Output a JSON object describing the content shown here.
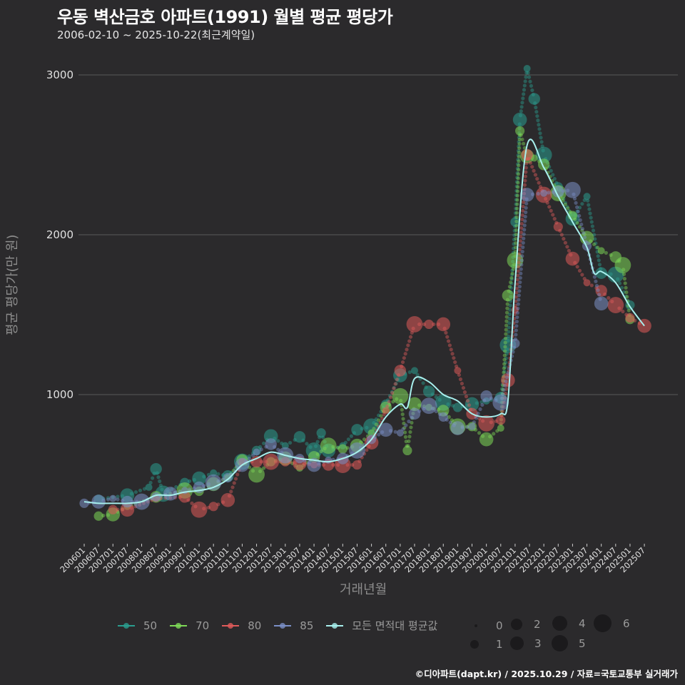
{
  "header": {
    "title": "우동 벽산금호 아파트(1991) 월별 평균 평당가",
    "subtitle": "2006-02-10 ~ 2025-10-22(최근계약일)"
  },
  "axes": {
    "ylabel": "평균 평당가(만 원)",
    "xlabel": "거래년월"
  },
  "legend": {
    "series": [
      {
        "label": "50",
        "color": "#2a9d8f"
      },
      {
        "label": "70",
        "color": "#7ed957"
      },
      {
        "label": "80",
        "color": "#e05a5a"
      },
      {
        "label": "85",
        "color": "#7b8fc7"
      },
      {
        "label": "모든 면적대 평균값",
        "color": "#a8f0ee"
      }
    ],
    "sizes": [
      {
        "label": "0",
        "d": 4
      },
      {
        "label": "1",
        "d": 12
      },
      {
        "label": "2",
        "d": 16
      },
      {
        "label": "3",
        "d": 19
      },
      {
        "label": "4",
        "d": 21
      },
      {
        "label": "5",
        "d": 23
      },
      {
        "label": "6",
        "d": 25
      }
    ]
  },
  "footer": "©디아파트(dapt.kr) / 2025.10.29 / 자료=국토교통부 실거래가",
  "chart_data": {
    "type": "scatter",
    "title": "우동 벽산금호 아파트(1991) 월별 평균 평당가",
    "subtitle": "2006-02-10 ~ 2025-10-22(최근계약일)",
    "xlabel": "거래년월",
    "ylabel": "평균 평당가(만 원)",
    "ylim": [
      0,
      3150
    ],
    "yticks": [
      1000,
      2000,
      3000
    ],
    "grid": true,
    "legend_position": "bottom",
    "categories": [
      "200601",
      "200607",
      "200701",
      "200707",
      "200801",
      "200807",
      "200901",
      "200907",
      "201001",
      "201007",
      "201101",
      "201107",
      "201201",
      "201207",
      "201301",
      "201307",
      "201401",
      "201407",
      "201501",
      "201507",
      "201601",
      "201607",
      "201701",
      "201707",
      "201801",
      "201807",
      "201901",
      "201907",
      "202001",
      "202007",
      "202101",
      "202107",
      "202201",
      "202207",
      "202301",
      "202307",
      "202401",
      "202407",
      "202501",
      "202507"
    ],
    "series": [
      {
        "name": "50",
        "color": "#2a9d8f",
        "points": [
          [
            "2006-07",
            345
          ],
          [
            "2007-07",
            370
          ],
          [
            "2008-04",
            420
          ],
          [
            "2008-07",
            535
          ],
          [
            "2008-10",
            380
          ],
          [
            "2009-07",
            450
          ],
          [
            "2010-01",
            475
          ],
          [
            "2010-07",
            510
          ],
          [
            "2011-01",
            490
          ],
          [
            "2011-07",
            580
          ],
          [
            "2012-01",
            650
          ],
          [
            "2012-07",
            740
          ],
          [
            "2013-01",
            680
          ],
          [
            "2013-07",
            735
          ],
          [
            "2014-01",
            650
          ],
          [
            "2014-04",
            760
          ],
          [
            "2014-07",
            650
          ],
          [
            "2015-01",
            680
          ],
          [
            "2015-07",
            780
          ],
          [
            "2016-01",
            800
          ],
          [
            "2016-07",
            940
          ],
          [
            "2017-01",
            1120
          ],
          [
            "2017-07",
            1150
          ],
          [
            "2018-01",
            1020
          ],
          [
            "2018-07",
            950
          ],
          [
            "2019-01",
            920
          ],
          [
            "2019-07",
            940
          ],
          [
            "2020-01",
            960
          ],
          [
            "2020-07",
            980
          ],
          [
            "2020-10",
            1310
          ],
          [
            "2021-01",
            2080
          ],
          [
            "2021-03",
            2720
          ],
          [
            "2021-06",
            3040
          ],
          [
            "2021-09",
            2850
          ],
          [
            "2022-01",
            2500
          ],
          [
            "2022-07",
            2300
          ],
          [
            "2023-01",
            2100
          ],
          [
            "2023-07",
            2240
          ],
          [
            "2024-01",
            1760
          ],
          [
            "2024-07",
            1750
          ],
          [
            "2025-01",
            1560
          ]
        ]
      },
      {
        "name": "70",
        "color": "#7ed957",
        "points": [
          [
            "2006-07",
            240
          ],
          [
            "2007-01",
            250
          ],
          [
            "2007-07",
            300
          ],
          [
            "2008-07",
            360
          ],
          [
            "2009-07",
            400
          ],
          [
            "2010-01",
            395
          ],
          [
            "2010-07",
            440
          ],
          [
            "2011-01",
            480
          ],
          [
            "2011-07",
            590
          ],
          [
            "2012-01",
            500
          ],
          [
            "2012-07",
            580
          ],
          [
            "2013-01",
            600
          ],
          [
            "2013-07",
            540
          ],
          [
            "2014-01",
            610
          ],
          [
            "2014-07",
            680
          ],
          [
            "2015-01",
            660
          ],
          [
            "2015-07",
            680
          ],
          [
            "2016-01",
            760
          ],
          [
            "2016-07",
            920
          ],
          [
            "2017-01",
            990
          ],
          [
            "2017-04",
            650
          ],
          [
            "2017-07",
            940
          ],
          [
            "2018-01",
            920
          ],
          [
            "2018-07",
            900
          ],
          [
            "2019-01",
            800
          ],
          [
            "2019-07",
            800
          ],
          [
            "2020-01",
            720
          ],
          [
            "2020-07",
            790
          ],
          [
            "2020-10",
            1620
          ],
          [
            "2021-01",
            1840
          ],
          [
            "2021-03",
            2650
          ],
          [
            "2021-06",
            2490
          ],
          [
            "2021-09",
            2480
          ],
          [
            "2022-01",
            2440
          ],
          [
            "2022-07",
            2260
          ],
          [
            "2023-01",
            2120
          ],
          [
            "2023-07",
            1980
          ],
          [
            "2024-01",
            1900
          ],
          [
            "2024-07",
            1860
          ],
          [
            "2024-10",
            1810
          ],
          [
            "2025-01",
            1470
          ]
        ]
      },
      {
        "name": "80",
        "color": "#e05a5a",
        "points": [
          [
            "2007-01",
            280
          ],
          [
            "2007-07",
            280
          ],
          [
            "2008-07",
            350
          ],
          [
            "2009-07",
            360
          ],
          [
            "2010-01",
            280
          ],
          [
            "2010-07",
            300
          ],
          [
            "2011-01",
            340
          ],
          [
            "2011-07",
            580
          ],
          [
            "2012-01",
            580
          ],
          [
            "2012-07",
            580
          ],
          [
            "2013-01",
            580
          ],
          [
            "2013-07",
            570
          ],
          [
            "2014-01",
            560
          ],
          [
            "2014-07",
            560
          ],
          [
            "2015-01",
            560
          ],
          [
            "2015-07",
            560
          ],
          [
            "2016-01",
            700
          ],
          [
            "2016-07",
            900
          ],
          [
            "2017-01",
            1150
          ],
          [
            "2017-07",
            1440
          ],
          [
            "2018-01",
            1440
          ],
          [
            "2018-07",
            1440
          ],
          [
            "2019-01",
            1150
          ],
          [
            "2019-07",
            880
          ],
          [
            "2020-01",
            820
          ],
          [
            "2020-07",
            840
          ],
          [
            "2020-10",
            1090
          ],
          [
            "2021-01",
            1530
          ],
          [
            "2021-06",
            2500
          ],
          [
            "2022-01",
            2250
          ],
          [
            "2022-07",
            2050
          ],
          [
            "2023-01",
            1850
          ],
          [
            "2023-07",
            1700
          ],
          [
            "2024-01",
            1650
          ],
          [
            "2024-07",
            1560
          ],
          [
            "2025-01",
            1480
          ],
          [
            "2025-07",
            1430
          ]
        ]
      },
      {
        "name": "85",
        "color": "#7b8fc7",
        "points": [
          [
            "2006-01",
            320
          ],
          [
            "2006-07",
            330
          ],
          [
            "2007-01",
            350
          ],
          [
            "2007-07",
            330
          ],
          [
            "2008-01",
            330
          ],
          [
            "2008-07",
            360
          ],
          [
            "2009-01",
            380
          ],
          [
            "2009-07",
            400
          ],
          [
            "2010-01",
            420
          ],
          [
            "2010-07",
            450
          ],
          [
            "2011-01",
            480
          ],
          [
            "2011-07",
            560
          ],
          [
            "2012-01",
            640
          ],
          [
            "2012-07",
            690
          ],
          [
            "2013-01",
            620
          ],
          [
            "2013-07",
            600
          ],
          [
            "2014-01",
            560
          ],
          [
            "2014-07",
            590
          ],
          [
            "2015-01",
            600
          ],
          [
            "2015-07",
            650
          ],
          [
            "2016-01",
            720
          ],
          [
            "2016-07",
            780
          ],
          [
            "2017-01",
            760
          ],
          [
            "2017-07",
            880
          ],
          [
            "2018-01",
            930
          ],
          [
            "2018-07",
            860
          ],
          [
            "2019-01",
            790
          ],
          [
            "2019-07",
            800
          ],
          [
            "2020-01",
            990
          ],
          [
            "2020-07",
            950
          ],
          [
            "2021-01",
            1320
          ],
          [
            "2021-06",
            2250
          ],
          [
            "2022-01",
            2260
          ],
          [
            "2022-07",
            2270
          ],
          [
            "2023-01",
            2280
          ],
          [
            "2023-07",
            1930
          ],
          [
            "2024-01",
            1570
          ]
        ]
      },
      {
        "name": "모든 면적대 평균값",
        "color": "#a8f0ee",
        "line": true,
        "points": [
          [
            "2006-01",
            330
          ],
          [
            "2006-07",
            320
          ],
          [
            "2007-01",
            320
          ],
          [
            "2007-07",
            320
          ],
          [
            "2008-01",
            330
          ],
          [
            "2008-07",
            370
          ],
          [
            "2009-01",
            370
          ],
          [
            "2009-07",
            390
          ],
          [
            "2010-01",
            400
          ],
          [
            "2010-07",
            420
          ],
          [
            "2011-01",
            470
          ],
          [
            "2011-07",
            560
          ],
          [
            "2012-01",
            600
          ],
          [
            "2012-07",
            640
          ],
          [
            "2013-01",
            620
          ],
          [
            "2013-07",
            600
          ],
          [
            "2014-01",
            590
          ],
          [
            "2014-07",
            580
          ],
          [
            "2015-01",
            600
          ],
          [
            "2015-07",
            640
          ],
          [
            "2016-01",
            720
          ],
          [
            "2016-07",
            860
          ],
          [
            "2017-01",
            940
          ],
          [
            "2017-04",
            920
          ],
          [
            "2017-07",
            1100
          ],
          [
            "2018-01",
            1080
          ],
          [
            "2018-07",
            1000
          ],
          [
            "2019-01",
            960
          ],
          [
            "2019-07",
            880
          ],
          [
            "2020-01",
            860
          ],
          [
            "2020-07",
            880
          ],
          [
            "2020-10",
            960
          ],
          [
            "2021-01",
            1700
          ],
          [
            "2021-06",
            2560
          ],
          [
            "2022-01",
            2420
          ],
          [
            "2022-07",
            2240
          ],
          [
            "2023-01",
            2080
          ],
          [
            "2023-07",
            1920
          ],
          [
            "2023-10",
            1760
          ],
          [
            "2024-01",
            1770
          ],
          [
            "2024-07",
            1700
          ],
          [
            "2025-01",
            1550
          ],
          [
            "2025-07",
            1430
          ]
        ]
      }
    ]
  }
}
